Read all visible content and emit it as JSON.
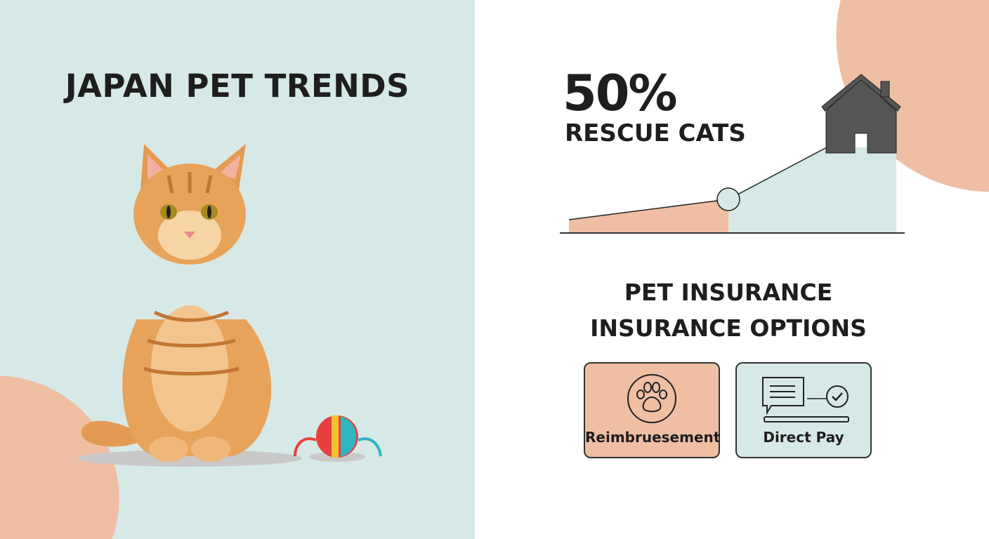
{
  "title": "JAPAN PET TRENDS",
  "rescue": {
    "value": "50%",
    "label": "RESCUE CATS"
  },
  "insurance": {
    "heading": "PET INSURANCE",
    "subheading": "INSURANCE OPTIONS",
    "options": [
      {
        "label": "Reimbruesement",
        "icon": "paw-icon",
        "color": "#efbfa3"
      },
      {
        "label": "Direct Pay",
        "icon": "document-check-icon",
        "color": "#d7e9e7"
      }
    ]
  },
  "colors": {
    "peach": "#efbfa3",
    "mint": "#d7e9e7",
    "dark": "#555555"
  }
}
